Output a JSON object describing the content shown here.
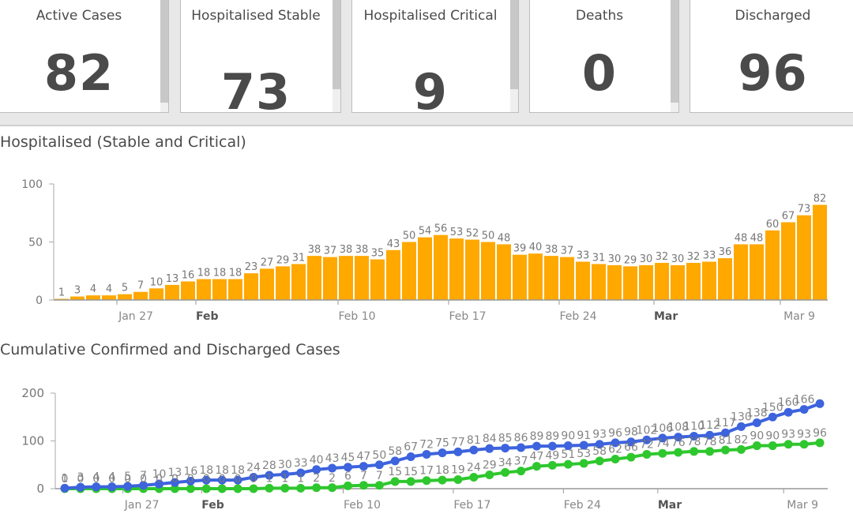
{
  "cards": [
    {
      "title": "Active Cases",
      "value": "82"
    },
    {
      "title": "Hospitalised Stable",
      "value": "73"
    },
    {
      "title": "Hospitalised Critical",
      "value": "9"
    },
    {
      "title": "Deaths",
      "value": "0"
    },
    {
      "title": "Discharged",
      "value": "96"
    }
  ],
  "colors": {
    "bar": "#ffa800",
    "confirmed": "#3d63dd",
    "discharged": "#2ec72e",
    "axis": "#999999",
    "label": "#666666"
  },
  "chart_data": [
    {
      "type": "bar",
      "title": "Hospitalised (Stable and Critical)",
      "xlabel": "",
      "ylabel": "",
      "ylim": [
        0,
        100
      ],
      "yticks": [
        0,
        50,
        100
      ],
      "xticks": [
        {
          "index": 4,
          "label": "Jan 27",
          "bold": false
        },
        {
          "index": 9,
          "label": "Feb",
          "bold": true
        },
        {
          "index": 18,
          "label": "Feb 10",
          "bold": false
        },
        {
          "index": 25,
          "label": "Feb 17",
          "bold": false
        },
        {
          "index": 32,
          "label": "Feb 24",
          "bold": false
        },
        {
          "index": 38,
          "label": "Mar",
          "bold": true
        },
        {
          "index": 46,
          "label": "Mar 9",
          "bold": false
        }
      ],
      "values": [
        1,
        3,
        4,
        4,
        5,
        7,
        10,
        13,
        16,
        18,
        18,
        18,
        23,
        27,
        29,
        31,
        38,
        37,
        38,
        38,
        35,
        43,
        50,
        54,
        56,
        53,
        52,
        50,
        48,
        39,
        40,
        38,
        37,
        33,
        31,
        30,
        29,
        30,
        32,
        30,
        32,
        33,
        36,
        48,
        48,
        60,
        67,
        73,
        82
      ],
      "grid": false,
      "legend": "none"
    },
    {
      "type": "line",
      "title": "Cumulative Confirmed and Discharged Cases",
      "xlabel": "",
      "ylabel": "",
      "ylim": [
        0,
        200
      ],
      "yticks": [
        0,
        100,
        200
      ],
      "xticks": [
        {
          "index": 4,
          "label": "Jan 27",
          "bold": false
        },
        {
          "index": 9,
          "label": "Feb",
          "bold": true
        },
        {
          "index": 18,
          "label": "Feb 10",
          "bold": false
        },
        {
          "index": 25,
          "label": "Feb 17",
          "bold": false
        },
        {
          "index": 32,
          "label": "Feb 24",
          "bold": false
        },
        {
          "index": 38,
          "label": "Mar",
          "bold": true
        },
        {
          "index": 46,
          "label": "Mar 9",
          "bold": false
        }
      ],
      "series": [
        {
          "name": "Confirmed",
          "values": [
            1,
            3,
            4,
            4,
            5,
            7,
            10,
            13,
            16,
            18,
            18,
            18,
            24,
            28,
            30,
            33,
            40,
            43,
            45,
            47,
            50,
            58,
            67,
            72,
            75,
            77,
            81,
            84,
            85,
            86,
            89,
            89,
            90,
            91,
            93,
            96,
            98,
            102,
            106,
            108,
            110,
            112,
            117,
            130,
            138,
            150,
            160,
            166,
            178
          ]
        },
        {
          "name": "Discharged",
          "values": [
            0,
            0,
            0,
            0,
            0,
            0,
            0,
            0,
            0,
            0,
            0,
            0,
            0,
            1,
            1,
            1,
            2,
            2,
            6,
            7,
            7,
            15,
            15,
            17,
            18,
            19,
            24,
            29,
            34,
            37,
            47,
            49,
            51,
            53,
            58,
            62,
            66,
            72,
            74,
            76,
            78,
            78,
            81,
            82,
            90,
            90,
            93,
            93,
            96
          ]
        }
      ],
      "grid": false,
      "legend": "none"
    }
  ]
}
